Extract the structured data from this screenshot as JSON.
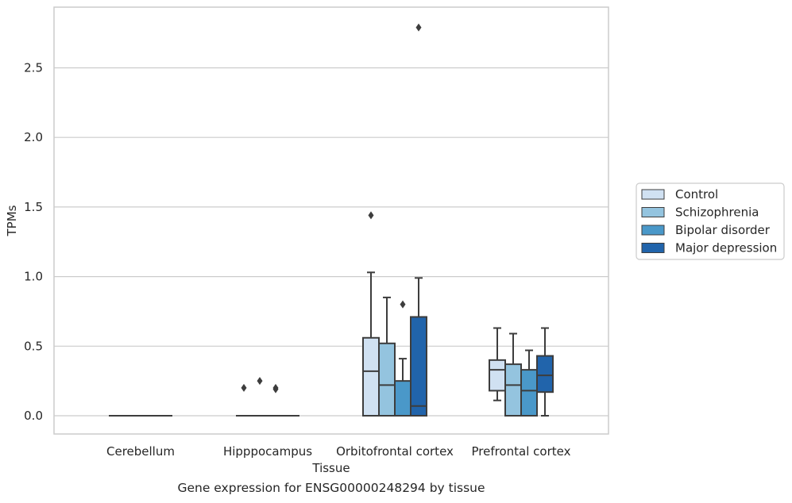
{
  "chart_data": {
    "type": "box",
    "title": "",
    "xlabel": "Tissue",
    "ylabel": "TPMs",
    "caption": "Gene expression for ENSG00000248294 by tissue",
    "ylim": [
      -0.14,
      2.93
    ],
    "yticks": [
      "0.0",
      "0.5",
      "1.0",
      "1.5",
      "2.0",
      "2.5"
    ],
    "grid": true,
    "legend_position": "right",
    "categories": [
      "Cerebellum",
      "Hipppocampus",
      "Orbitofrontal cortex",
      "Prefrontal cortex"
    ],
    "series": [
      {
        "name": "Control",
        "color": "#d0e1f2",
        "boxes": [
          {
            "whislo": 0,
            "q1": 0,
            "med": 0,
            "q3": 0,
            "whishi": 0,
            "fliers": []
          },
          {
            "whislo": 0,
            "q1": 0,
            "med": 0,
            "q3": 0,
            "whishi": 0,
            "fliers": [
              0.2
            ]
          },
          {
            "whislo": 0,
            "q1": 0,
            "med": 0.32,
            "q3": 0.56,
            "whishi": 1.03,
            "fliers": [
              1.44
            ]
          },
          {
            "whislo": 0.11,
            "q1": 0.18,
            "med": 0.33,
            "q3": 0.4,
            "whishi": 0.63,
            "fliers": []
          }
        ]
      },
      {
        "name": "Schizophrenia",
        "color": "#94c4df",
        "boxes": [
          {
            "whislo": 0,
            "q1": 0,
            "med": 0,
            "q3": 0,
            "whishi": 0,
            "fliers": []
          },
          {
            "whislo": 0,
            "q1": 0,
            "med": 0,
            "q3": 0,
            "whishi": 0,
            "fliers": [
              0.25
            ]
          },
          {
            "whislo": 0,
            "q1": 0,
            "med": 0.22,
            "q3": 0.52,
            "whishi": 0.85,
            "fliers": []
          },
          {
            "whislo": 0,
            "q1": 0,
            "med": 0.22,
            "q3": 0.37,
            "whishi": 0.59,
            "fliers": []
          }
        ]
      },
      {
        "name": "Bipolar disorder",
        "color": "#4a98c9",
        "boxes": [
          {
            "whislo": 0,
            "q1": 0,
            "med": 0,
            "q3": 0,
            "whishi": 0,
            "fliers": []
          },
          {
            "whislo": 0,
            "q1": 0,
            "med": 0,
            "q3": 0,
            "whishi": 0,
            "fliers": [
              0.19,
              0.2
            ]
          },
          {
            "whislo": 0,
            "q1": 0,
            "med": 0,
            "q3": 0.25,
            "whishi": 0.41,
            "fliers": [
              0.8
            ]
          },
          {
            "whislo": 0,
            "q1": 0,
            "med": 0.18,
            "q3": 0.33,
            "whishi": 0.47,
            "fliers": []
          }
        ]
      },
      {
        "name": "Major depression",
        "color": "#2164ab",
        "boxes": [
          {
            "whislo": 0,
            "q1": 0,
            "med": 0,
            "q3": 0,
            "whishi": 0,
            "fliers": []
          },
          {
            "whislo": 0,
            "q1": 0,
            "med": 0,
            "q3": 0,
            "whishi": 0,
            "fliers": []
          },
          {
            "whislo": 0,
            "q1": 0,
            "med": 0.07,
            "q3": 0.71,
            "whishi": 0.99,
            "fliers": [
              2.79
            ]
          },
          {
            "whislo": 0,
            "q1": 0.17,
            "med": 0.29,
            "q3": 0.43,
            "whishi": 0.63,
            "fliers": []
          }
        ]
      }
    ],
    "colors": {
      "edge": "#3d3d3d",
      "grid": "#cccccc",
      "frame": "#cccccc"
    }
  }
}
